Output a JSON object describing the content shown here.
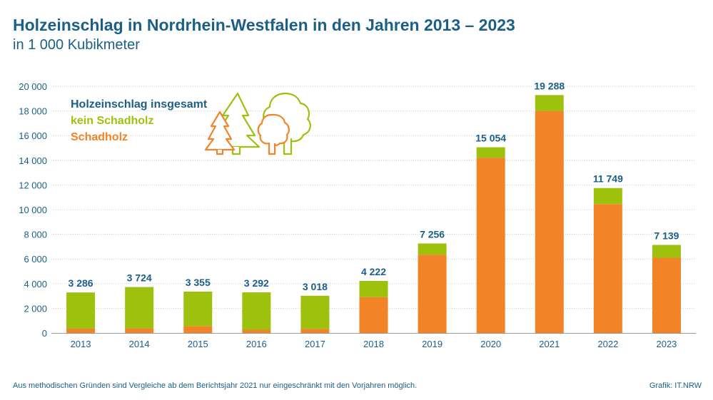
{
  "title": "Holzeinschlag in Nordrhein-Westfalen in den Jahren 2013 – 2023",
  "subtitle": "in 1 000 Kubikmeter",
  "footnote": "Aus methodischen Gründen sind Vergleiche ab dem Berichtsjahr 2021 nur eingeschränkt mit den Vorjahren möglich.",
  "source": "Grafik: IT.NRW",
  "colors": {
    "text": "#1b5f87",
    "green": "#9dc10d",
    "orange": "#f28427"
  },
  "legend": {
    "total": "Holzeinschlag insgesamt",
    "green": "kein Schadholz",
    "orange": "Schadholz"
  },
  "chart_data": {
    "type": "bar",
    "stacked": true,
    "categories": [
      "2013",
      "2014",
      "2015",
      "2016",
      "2017",
      "2018",
      "2019",
      "2020",
      "2021",
      "2022",
      "2023"
    ],
    "series": [
      {
        "name": "Schadholz",
        "values": [
          350,
          380,
          560,
          260,
          330,
          2900,
          6350,
          14200,
          18000,
          10450,
          6100
        ]
      },
      {
        "name": "kein Schadholz",
        "values": [
          2936,
          3344,
          2795,
          3032,
          2688,
          1322,
          906,
          854,
          1288,
          1299,
          1039
        ]
      }
    ],
    "totals": [
      3286,
      3724,
      3355,
      3292,
      3018,
      4222,
      7256,
      15054,
      19288,
      11749,
      7139
    ],
    "total_labels": [
      "3 286",
      "3 724",
      "3 355",
      "3 292",
      "3 018",
      "4 222",
      "7 256",
      "15 054",
      "19 288",
      "11 749",
      "7 139"
    ],
    "ylim": [
      0,
      20000
    ],
    "yticks": [
      0,
      2000,
      4000,
      6000,
      8000,
      10000,
      12000,
      14000,
      16000,
      18000,
      20000
    ],
    "ytick_labels": [
      "0",
      "2 000",
      "4 000",
      "6 000",
      "8 000",
      "10 000",
      "12 000",
      "14 000",
      "16 000",
      "18 000",
      "20 000"
    ],
    "grid": true,
    "legend_position": "top-left"
  }
}
